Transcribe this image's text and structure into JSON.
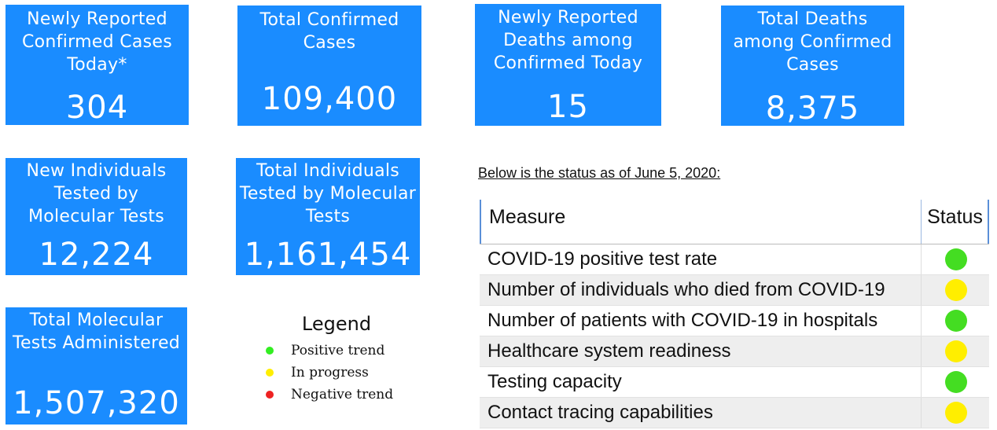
{
  "cards": [
    {
      "label": "Newly Reported Confirmed Cases Today*",
      "value": "304"
    },
    {
      "label": "Total Confirmed Cases",
      "value": "109,400"
    },
    {
      "label": "Newly Reported Deaths among Confirmed Today",
      "value": "15"
    },
    {
      "label": "Total Deaths among Confirmed Cases",
      "value": "8,375"
    },
    {
      "label": "New Individuals Tested by Molecular Tests",
      "value": "12,224"
    },
    {
      "label": "Total Individuals Tested by Molecular Tests",
      "value": "1,161,454"
    },
    {
      "label": "Total Molecular Tests Administered",
      "value": "1,507,320"
    }
  ],
  "card_color": "#1a8cff",
  "status": {
    "title": "Below is the status as of June 5, 2020:",
    "header_measure": "Measure",
    "header_status": "Status",
    "rows": [
      {
        "measure": "COVID-19 positive test rate",
        "status": "green"
      },
      {
        "measure": "Number of individuals who died from COVID-19",
        "status": "yellow"
      },
      {
        "measure": "Number of patients with COVID-19 in hospitals",
        "status": "green"
      },
      {
        "measure": "Healthcare system readiness",
        "status": "yellow"
      },
      {
        "measure": "Testing capacity",
        "status": "green"
      },
      {
        "measure": "Contact tracing capabilities",
        "status": "yellow"
      }
    ]
  },
  "legend": {
    "title": "Legend",
    "items": [
      {
        "label": "Positive trend",
        "color": "#33ee22"
      },
      {
        "label": "In progress",
        "color": "#ffee00"
      },
      {
        "label": "Negative trend",
        "color": "#ee2222"
      }
    ]
  },
  "status_colors": {
    "green": "#44dd22",
    "yellow": "#ffee00"
  }
}
